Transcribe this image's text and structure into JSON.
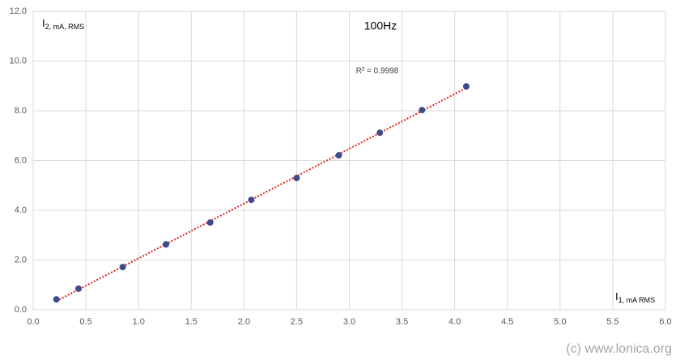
{
  "chart_data": {
    "type": "scatter",
    "title": "100Hz",
    "x_label": {
      "main": "I",
      "sub": "1, mA RMS"
    },
    "y_label": {
      "main": "I",
      "sub": "2, mA, RMS"
    },
    "x": [
      0.22,
      0.43,
      0.85,
      1.26,
      1.68,
      2.07,
      2.5,
      2.9,
      3.29,
      3.69,
      4.11
    ],
    "series": [
      {
        "color": "#3f4c8c",
        "values": [
          0.42,
          0.85,
          1.72,
          2.63,
          3.51,
          4.42,
          5.3,
          6.21,
          7.12,
          8.03,
          8.98
        ]
      }
    ],
    "trendline": {
      "type": "linear",
      "color": "#e3211c",
      "label": "R² = 0.9998"
    },
    "xlim": [
      0,
      6
    ],
    "ylim": [
      0,
      12
    ],
    "xticks": [
      {
        "value": 0,
        "label": "0.0"
      },
      {
        "value": 0.5,
        "label": "0.5"
      },
      {
        "value": 1,
        "label": "1.0"
      },
      {
        "value": 1.5,
        "label": "1.5"
      },
      {
        "value": 2,
        "label": "2.0"
      },
      {
        "value": 2.5,
        "label": "2.5"
      },
      {
        "value": 3,
        "label": "3.0"
      },
      {
        "value": 3.5,
        "label": "3.5"
      },
      {
        "value": 4,
        "label": "4.0"
      },
      {
        "value": 4.5,
        "label": "4.5"
      },
      {
        "value": 5,
        "label": "5.0"
      },
      {
        "value": 5.5,
        "label": "5.5"
      },
      {
        "value": 6,
        "label": "6.0"
      }
    ],
    "yticks": [
      {
        "value": 0,
        "label": "0.0"
      },
      {
        "value": 2,
        "label": "2.0"
      },
      {
        "value": 4,
        "label": "4.0"
      },
      {
        "value": 6,
        "label": "6.0"
      },
      {
        "value": 8,
        "label": "8.0"
      },
      {
        "value": 10,
        "label": "10.0"
      },
      {
        "value": 12,
        "label": "12.0"
      }
    ],
    "grid": true,
    "watermark": "(c) www.lonica.org"
  }
}
